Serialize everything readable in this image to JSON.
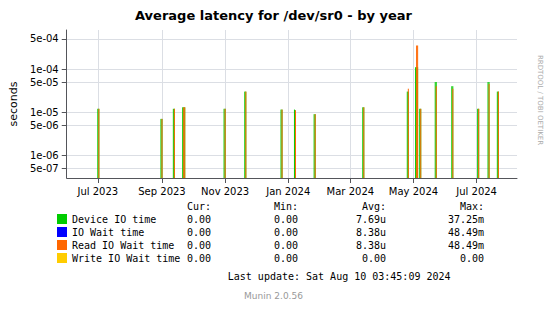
{
  "chart_data": {
    "type": "bar",
    "title": "Average latency for /dev/sr0 - by year",
    "ylabel": "seconds",
    "log": "y",
    "grid": true,
    "legend": "bottom",
    "xlim": [
      1685577600,
      1723161600
    ],
    "xticks": [
      {
        "value": 1688169600,
        "label": "Jul 2023"
      },
      {
        "value": 1693526400,
        "label": "Sep 2023"
      },
      {
        "value": 1698796800,
        "label": "Nov 2023"
      },
      {
        "value": 1704067200,
        "label": "Jan 2024"
      },
      {
        "value": 1709251200,
        "label": "Mar 2024"
      },
      {
        "value": 1714521600,
        "label": "May 2024"
      },
      {
        "value": 1719792000,
        "label": "Jul 2024"
      }
    ],
    "ylim": [
      3e-07,
      0.0008
    ],
    "yticks": [
      {
        "value": 5e-07,
        "label": "5e-07"
      },
      {
        "value": 1e-06,
        "label": "1e-06"
      },
      {
        "value": 5e-06,
        "label": "5e-06"
      },
      {
        "value": 1e-05,
        "label": "1e-05"
      },
      {
        "value": 5e-05,
        "label": "5e-05"
      },
      {
        "value": 0.0001,
        "label": "1e-04"
      },
      {
        "value": 0.0005,
        "label": "5e-04"
      }
    ],
    "stats_headers": [
      "Cur:",
      "Min:",
      "Avg:",
      "Max:"
    ],
    "series": [
      {
        "name": "Device IO time",
        "color": "#00cc00",
        "x": [
          1688169600,
          1688256000,
          1693440000,
          1693526400,
          1694476800,
          1694563200,
          1695254400,
          1695340800,
          1695427200,
          1698710400,
          1698796800,
          1700438400,
          1700524800,
          1703462400,
          1703548800,
          1704585600,
          1704672000,
          1706227200,
          1706313600,
          1710288000,
          1710374400,
          1714003200,
          1714089600,
          1714694400,
          1714780800,
          1714867200,
          1715040000,
          1715126400,
          1716336000,
          1716422400,
          1717718400,
          1717804800,
          1719878400,
          1719964800,
          1720742400,
          1720828800,
          1721520000,
          1721606400
        ],
        "values": [
          1.2e-05,
          1.2e-05,
          7e-06,
          7e-06,
          1.2e-05,
          1.2e-05,
          1.3e-05,
          1.3e-05,
          1.3e-05,
          1.2e-05,
          1.2e-05,
          3e-05,
          3e-05,
          1.15e-05,
          1.15e-05,
          1.15e-05,
          1.1e-05,
          9e-06,
          9e-06,
          1.3e-05,
          1.3e-05,
          3e-05,
          3e-05,
          0.00011,
          0.00011,
          0.00011,
          1.2e-05,
          1.2e-05,
          5e-05,
          5e-05,
          4e-05,
          4e-05,
          1.2e-05,
          1.2e-05,
          5e-05,
          5e-05,
          3e-05,
          3e-05
        ],
        "stats": [
          "0.00",
          "0.00",
          "7.69u",
          "37.25m"
        ]
      },
      {
        "name": "IO Wait time",
        "color": "#0000ff",
        "x": [],
        "values": [],
        "stats": [
          "0.00",
          "0.00",
          "8.38u",
          "48.49m"
        ]
      },
      {
        "name": "Read IO Wait time",
        "color": "#ff6600",
        "x": [
          1688256000,
          1693526400,
          1694563200,
          1695340800,
          1695427200,
          1698796800,
          1700524800,
          1703548800,
          1704672000,
          1706313600,
          1710374400,
          1714089600,
          1714780800,
          1714867200,
          1715126400,
          1716422400,
          1717804800,
          1719964800,
          1720828800,
          1721606400
        ],
        "values": [
          1.2e-05,
          7e-06,
          1.2e-05,
          1.3e-05,
          1.3e-05,
          1.2e-05,
          3e-05,
          1.15e-05,
          1.1e-05,
          9e-06,
          1.3e-05,
          3.5e-05,
          0.00035,
          0.00035,
          1.2e-05,
          4e-05,
          3.5e-05,
          1.2e-05,
          4.5e-05,
          3e-05
        ],
        "stats": [
          "0.00",
          "0.00",
          "8.38u",
          "48.49m"
        ]
      },
      {
        "name": "Write IO Wait time",
        "color": "#ffcc00",
        "x": [],
        "values": [],
        "stats": [
          "0.00",
          "0.00",
          "0.00",
          "0.00"
        ]
      }
    ],
    "annotations": [
      "Last update: Sat Aug 10 03:45:09 2024",
      "Munin 2.0.56",
      "RRDTOOL / TOBI OETIKER"
    ]
  }
}
